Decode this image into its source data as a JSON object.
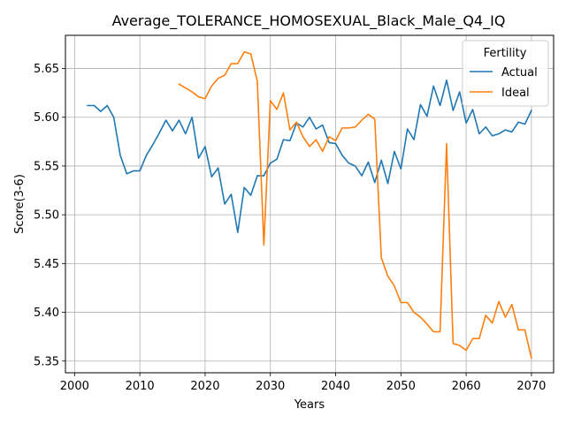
{
  "chart_data": {
    "type": "line",
    "title": "Average_TOLERANCE_HOMOSEXUAL_Black_Male_Q4_IQ",
    "xlabel": "Years",
    "ylabel": "Score(3-6)",
    "xlim": [
      1998.6,
      2073.4
    ],
    "ylim": [
      5.338,
      5.684
    ],
    "xticks": [
      2000,
      2010,
      2020,
      2030,
      2040,
      2050,
      2060,
      2070
    ],
    "yticks": [
      5.35,
      5.4,
      5.45,
      5.5,
      5.55,
      5.6,
      5.65
    ],
    "ytick_labels": [
      "5.35",
      "5.40",
      "5.45",
      "5.50",
      "5.55",
      "5.60",
      "5.65"
    ],
    "grid": true,
    "legend": {
      "title": "Fertility",
      "position": "top-right"
    },
    "series": [
      {
        "name": "Actual",
        "color": "#1f77b4",
        "x": [
          2002,
          2003,
          2004,
          2005,
          2006,
          2007,
          2008,
          2009,
          2010,
          2011,
          2012,
          2013,
          2014,
          2015,
          2016,
          2017,
          2018,
          2019,
          2020,
          2021,
          2022,
          2023,
          2024,
          2025,
          2026,
          2027,
          2028,
          2029,
          2030,
          2031,
          2032,
          2033,
          2034,
          2035,
          2036,
          2037,
          2038,
          2039,
          2040,
          2041,
          2042,
          2043,
          2044,
          2045,
          2046,
          2047,
          2048,
          2049,
          2050,
          2051,
          2052,
          2053,
          2054,
          2055,
          2056,
          2057,
          2058,
          2059,
          2060,
          2061,
          2062,
          2063,
          2064,
          2065,
          2066,
          2067,
          2068,
          2069,
          2070
        ],
        "values": [
          5.612,
          5.612,
          5.606,
          5.612,
          5.6,
          5.561,
          5.542,
          5.545,
          5.545,
          5.561,
          5.572,
          5.584,
          5.597,
          5.586,
          5.597,
          5.583,
          5.6,
          5.558,
          5.57,
          5.539,
          5.548,
          5.511,
          5.521,
          5.482,
          5.528,
          5.52,
          5.54,
          5.54,
          5.553,
          5.557,
          5.577,
          5.576,
          5.594,
          5.59,
          5.6,
          5.588,
          5.592,
          5.574,
          5.573,
          5.561,
          5.553,
          5.55,
          5.54,
          5.554,
          5.533,
          5.556,
          5.532,
          5.565,
          5.547,
          5.588,
          5.577,
          5.613,
          5.601,
          5.632,
          5.612,
          5.638,
          5.607,
          5.626,
          5.594,
          5.608,
          5.583,
          5.59,
          5.581,
          5.583,
          5.587,
          5.585,
          5.595,
          5.593,
          5.607
        ]
      },
      {
        "name": "Ideal",
        "color": "#ff7f0e",
        "x": [
          2016,
          2017,
          2018,
          2019,
          2020,
          2021,
          2022,
          2023,
          2024,
          2025,
          2026,
          2027,
          2028,
          2029,
          2030,
          2031,
          2032,
          2033,
          2034,
          2035,
          2036,
          2037,
          2038,
          2039,
          2040,
          2041,
          2042,
          2043,
          2044,
          2045,
          2046,
          2047,
          2048,
          2049,
          2050,
          2051,
          2052,
          2053,
          2054,
          2055,
          2056,
          2057,
          2058,
          2059,
          2060,
          2061,
          2062,
          2063,
          2064,
          2065,
          2066,
          2067,
          2068,
          2069,
          2070
        ],
        "values": [
          5.634,
          5.63,
          5.626,
          5.621,
          5.619,
          5.632,
          5.64,
          5.643,
          5.655,
          5.655,
          5.667,
          5.665,
          5.637,
          5.469,
          5.617,
          5.608,
          5.625,
          5.587,
          5.595,
          5.58,
          5.57,
          5.577,
          5.565,
          5.58,
          5.576,
          5.589,
          5.589,
          5.59,
          5.597,
          5.603,
          5.598,
          5.456,
          5.437,
          5.427,
          5.41,
          5.41,
          5.4,
          5.395,
          5.388,
          5.38,
          5.38,
          5.573,
          5.368,
          5.366,
          5.361,
          5.373,
          5.373,
          5.397,
          5.389,
          5.411,
          5.395,
          5.408,
          5.382,
          5.382,
          5.353
        ]
      }
    ]
  }
}
